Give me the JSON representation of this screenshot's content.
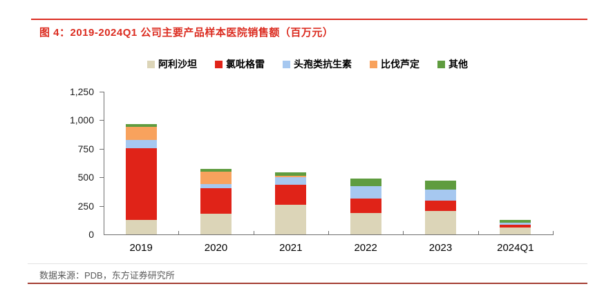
{
  "header": {
    "title": "图 4：2019-2024Q1 公司主要产品样本医院销售额（百万元）"
  },
  "footer": {
    "source": "数据来源：PDB，东方证券研究所"
  },
  "colors": {
    "accent_red": "#DB2B1F",
    "rule_bottom_red": "#A33C31",
    "axis_gray": "#6e6e6e",
    "separator_gray": "#e2e2e2",
    "source_text_gray": "#595959"
  },
  "chart_data": {
    "type": "bar",
    "stacked": true,
    "title": "2019-2024Q1 公司主要产品样本医院销售额（百万元）",
    "unit": "百万元",
    "grid": false,
    "legend_position": "top",
    "xlabel": "",
    "ylabel": "",
    "ylim": [
      0,
      1250
    ],
    "yticks": [
      0,
      250,
      500,
      750,
      1000,
      1250
    ],
    "ytick_labels": [
      "0",
      "250",
      "500",
      "750",
      "1,000",
      "1,250"
    ],
    "categories": [
      "2019",
      "2020",
      "2021",
      "2022",
      "2023",
      "2024Q1"
    ],
    "series": [
      {
        "name": "阿利沙坦",
        "color": "#DCD5B8",
        "values": [
          125,
          180,
          260,
          185,
          205,
          58
        ]
      },
      {
        "name": "氯吡格雷",
        "color": "#E02318",
        "values": [
          630,
          225,
          175,
          130,
          90,
          26
        ]
      },
      {
        "name": "头孢类抗生素",
        "color": "#A6C8F0",
        "values": [
          75,
          35,
          65,
          105,
          95,
          20
        ]
      },
      {
        "name": "比伐芦定",
        "color": "#F8A25D",
        "values": [
          110,
          110,
          15,
          0,
          0,
          0
        ]
      },
      {
        "name": "其他",
        "color": "#5F9C3F",
        "values": [
          25,
          25,
          30,
          70,
          80,
          20
        ]
      }
    ]
  }
}
